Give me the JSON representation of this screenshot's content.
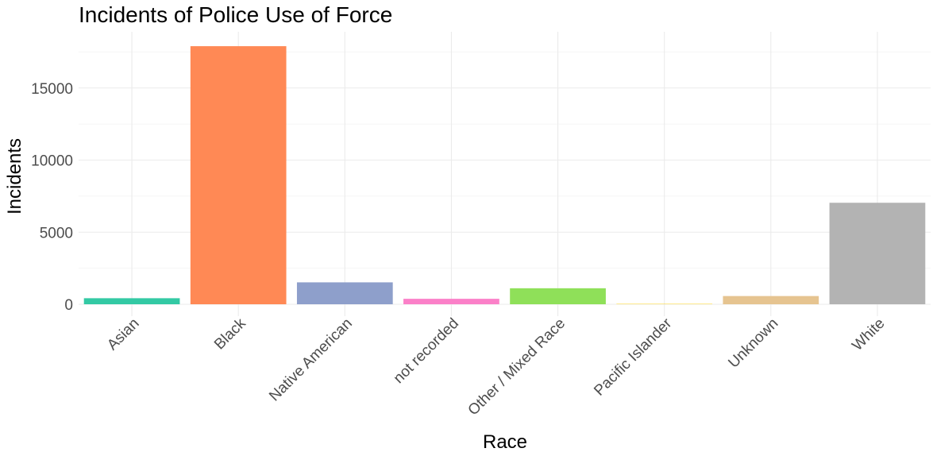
{
  "chart_data": {
    "type": "bar",
    "title": "Incidents of Police Use of Force",
    "xlabel": "Race",
    "ylabel": "Incidents",
    "categories": [
      "Asian",
      "Black",
      "Native American",
      "not recorded",
      "Other / Mixed Race",
      "Pacific Islander",
      "Unknown",
      "White"
    ],
    "values": [
      420,
      17900,
      1520,
      380,
      1110,
      30,
      570,
      7040
    ],
    "colors": [
      "#33c9a4",
      "#ff8955",
      "#8e9fcb",
      "#fb80c8",
      "#8fe059",
      "#ffd72f",
      "#e6c490",
      "#b3b3b3"
    ],
    "ylim": [
      0,
      18000
    ],
    "yticks": [
      0,
      5000,
      10000,
      15000
    ],
    "grid": true,
    "legend": "none"
  }
}
